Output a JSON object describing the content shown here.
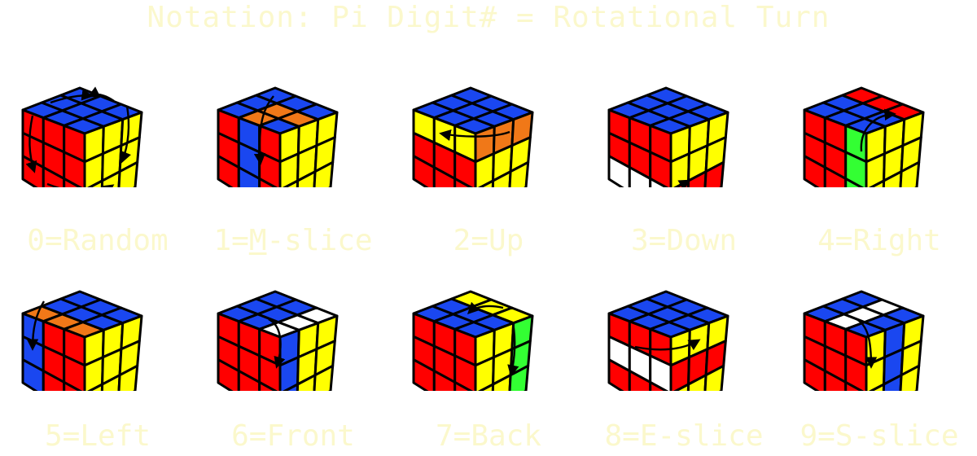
{
  "title": "Notation: Pi Digit# = Rotational Turn",
  "colors": {
    "background": "#ffffff",
    "text": "#fbf8cc",
    "blue": "#1a47f0",
    "red": "#ff0000",
    "yellow": "#ffff00",
    "orange": "#f07818",
    "white": "#ffffff",
    "green": "#33ff33",
    "edge": "#000000"
  },
  "cubes": [
    {
      "pre": "0=",
      "ul": "",
      "post": "Random",
      "arrow": "random",
      "top": [
        "B",
        "B",
        "B",
        "B",
        "B",
        "B",
        "B",
        "B",
        "B"
      ],
      "front": [
        "R",
        "R",
        "R",
        "R",
        "R",
        "R",
        "R",
        "R",
        "R"
      ],
      "right": [
        "Y",
        "Y",
        "Y",
        "Y",
        "Y",
        "Y",
        "Y",
        "Y",
        "Y"
      ]
    },
    {
      "pre": "1=",
      "ul": "M",
      "post": "-slice",
      "arrow": "mslice",
      "top": [
        "B",
        "B",
        "B",
        "O",
        "O",
        "B",
        "B",
        "O",
        "B"
      ],
      "front": [
        "R",
        "B",
        "R",
        "R",
        "B",
        "R",
        "R",
        "B",
        "R"
      ],
      "right": [
        "Y",
        "Y",
        "Y",
        "Y",
        "Y",
        "Y",
        "Y",
        "Y",
        "Y"
      ]
    },
    {
      "pre": "2=",
      "ul": "",
      "post": "Up",
      "arrow": "up",
      "top": [
        "B",
        "B",
        "B",
        "B",
        "B",
        "B",
        "B",
        "B",
        "B"
      ],
      "front": [
        "Y",
        "Y",
        "Y",
        "R",
        "R",
        "R",
        "R",
        "R",
        "R"
      ],
      "right": [
        "O",
        "O",
        "O",
        "Y",
        "Y",
        "Y",
        "Y",
        "Y",
        "Y"
      ]
    },
    {
      "pre": "3=",
      "ul": "",
      "post": "Down",
      "arrow": "down",
      "top": [
        "B",
        "B",
        "B",
        "B",
        "B",
        "B",
        "B",
        "B",
        "B"
      ],
      "front": [
        "R",
        "R",
        "R",
        "R",
        "R",
        "R",
        "W",
        "W",
        "W"
      ],
      "right": [
        "Y",
        "Y",
        "Y",
        "Y",
        "Y",
        "Y",
        "R",
        "R",
        "R"
      ]
    },
    {
      "pre": "4=",
      "ul": "",
      "post": "Right",
      "arrow": "right",
      "top": [
        "B",
        "B",
        "R",
        "B",
        "B",
        "R",
        "B",
        "B",
        "R"
      ],
      "front": [
        "R",
        "R",
        "G",
        "R",
        "R",
        "G",
        "R",
        "R",
        "G"
      ],
      "right": [
        "Y",
        "Y",
        "Y",
        "Y",
        "Y",
        "Y",
        "Y",
        "Y",
        "Y"
      ]
    },
    {
      "pre": "5=",
      "ul": "",
      "post": "Left",
      "arrow": "left",
      "top": [
        "O",
        "B",
        "B",
        "O",
        "B",
        "B",
        "O",
        "B",
        "B"
      ],
      "front": [
        "B",
        "R",
        "R",
        "B",
        "R",
        "R",
        "B",
        "R",
        "R"
      ],
      "right": [
        "Y",
        "Y",
        "Y",
        "Y",
        "Y",
        "Y",
        "Y",
        "Y",
        "Y"
      ]
    },
    {
      "pre": "6=",
      "ul": "",
      "post": "Front",
      "arrow": "front",
      "top": [
        "B",
        "B",
        "B",
        "B",
        "B",
        "B",
        "W",
        "W",
        "W"
      ],
      "front": [
        "R",
        "R",
        "R",
        "R",
        "R",
        "R",
        "R",
        "R",
        "R"
      ],
      "right": [
        "B",
        "Y",
        "Y",
        "B",
        "Y",
        "Y",
        "B",
        "Y",
        "Y"
      ]
    },
    {
      "pre": "7=",
      "ul": "",
      "post": "Back",
      "arrow": "back",
      "top": [
        "B",
        "B",
        "Y",
        "B",
        "B",
        "Y",
        "B",
        "B",
        "Y"
      ],
      "front": [
        "R",
        "R",
        "R",
        "R",
        "R",
        "R",
        "R",
        "R",
        "R"
      ],
      "right": [
        "Y",
        "Y",
        "G",
        "Y",
        "Y",
        "G",
        "Y",
        "Y",
        "G"
      ]
    },
    {
      "pre": "8=",
      "ul": "",
      "post": "E-slice",
      "arrow": "eslice",
      "top": [
        "B",
        "B",
        "B",
        "B",
        "B",
        "B",
        "B",
        "B",
        "B"
      ],
      "front": [
        "R",
        "R",
        "R",
        "W",
        "W",
        "W",
        "R",
        "R",
        "R"
      ],
      "right": [
        "Y",
        "Y",
        "Y",
        "R",
        "R",
        "R",
        "Y",
        "Y",
        "Y"
      ]
    },
    {
      "pre": "9=",
      "ul": "",
      "post": "S-slice",
      "arrow": "sslice",
      "top": [
        "B",
        "B",
        "B",
        "W",
        "W",
        "W",
        "B",
        "B",
        "B"
      ],
      "front": [
        "R",
        "R",
        "R",
        "R",
        "R",
        "R",
        "R",
        "R",
        "R"
      ],
      "right": [
        "Y",
        "B",
        "Y",
        "Y",
        "B",
        "Y",
        "Y",
        "B",
        "Y"
      ]
    }
  ]
}
